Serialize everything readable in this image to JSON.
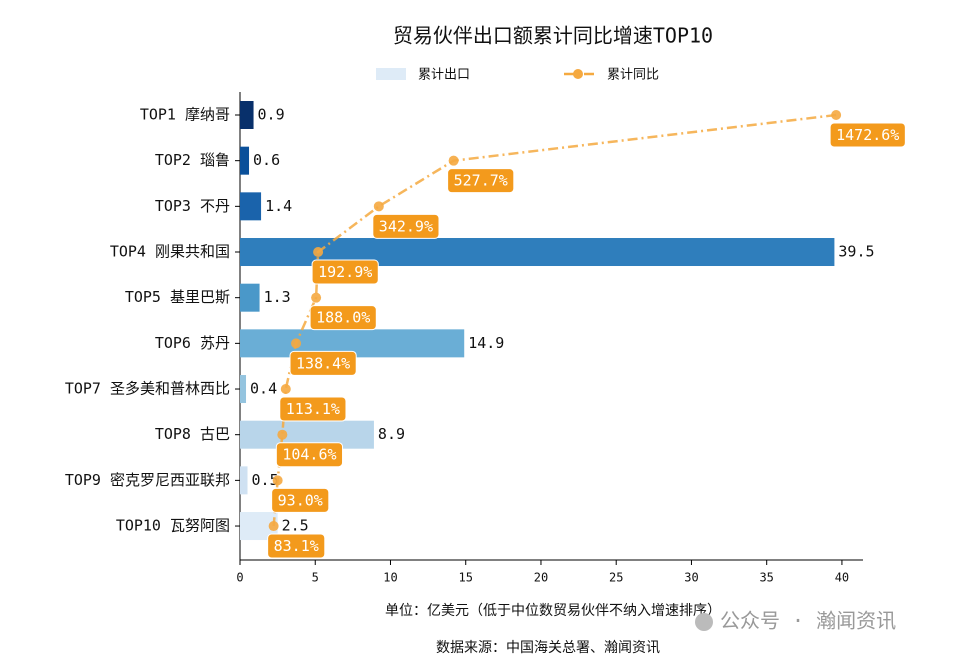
{
  "chart_data": {
    "type": "bar",
    "orientation": "horizontal",
    "title": "贸易伙伴出口额累计同比增速TOP10",
    "categories": [
      "TOP1 摩纳哥",
      "TOP2 瑙鲁",
      "TOP3 不丹",
      "TOP4 刚果共和国",
      "TOP5 基里巴斯",
      "TOP6 苏丹",
      "TOP7 圣多美和普林西比",
      "TOP8 古巴",
      "TOP9 密克罗尼西亚联邦",
      "TOP10 瓦努阿图"
    ],
    "series": [
      {
        "name": "累计出口",
        "type": "bar",
        "color": "#deebf7",
        "colors": [
          "#08306b",
          "#0b509a",
          "#1a63ab",
          "#2f7ebc",
          "#4a98c9",
          "#6aaed6",
          "#94c4df",
          "#b8d5ea",
          "#cfe1f2",
          "#deebf7"
        ],
        "values": [
          0.9,
          0.6,
          1.4,
          39.5,
          1.3,
          14.9,
          0.4,
          8.9,
          0.5,
          2.5
        ]
      },
      {
        "name": "累计同比",
        "type": "line",
        "axis": "x2",
        "color": "#f5a940",
        "label_color": "#f39a1c",
        "values": [
          1472.6,
          527.7,
          342.9,
          192.9,
          188.0,
          138.4,
          113.1,
          104.6,
          93.0,
          83.1
        ],
        "value_labels": [
          "1472.6%",
          "527.7%",
          "342.9%",
          "192.9%",
          "188.0%",
          "138.4%",
          "113.1%",
          "104.6%",
          "93.0%",
          "83.1%"
        ]
      }
    ],
    "xlim": [
      0,
      41.4
    ],
    "xticks": [
      0,
      5,
      10,
      15,
      20,
      25,
      30,
      35,
      40
    ],
    "x2lim": [
      0,
      1539
    ],
    "xlabel": "单位：亿美元（低于中位数贸易伙伴不纳入增速排序）",
    "source": "数据来源：中国海关总署、瀚闻资讯",
    "watermark": "公众号 · 瀚闻资讯"
  }
}
